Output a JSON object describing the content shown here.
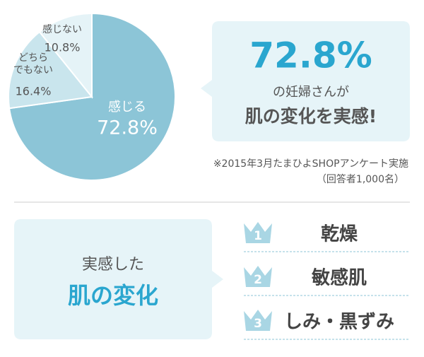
{
  "chart_data": {
    "type": "pie",
    "categories": [
      "感じる",
      "どちら\nでもない",
      "感じない"
    ],
    "values": [
      72.8,
      16.4,
      10.8
    ],
    "value_labels": [
      "72.8%",
      "16.4%",
      "10.8%"
    ],
    "colors": [
      "#8cc5d7",
      "#c9e5ed",
      "#e5f3f7"
    ]
  },
  "callout": {
    "value": "72.8%",
    "line1": "の妊婦さんが",
    "line2": "肌の変化を実感!"
  },
  "note": {
    "line1": "※2015年3月たまひよSHOPアンケート実施",
    "line2": "（回答者1,000名）"
  },
  "ranking": {
    "heading1": "実感した",
    "heading2": "肌の変化",
    "items": [
      {
        "rank": "1",
        "label": "乾燥"
      },
      {
        "rank": "2",
        "label": "敏感肌"
      },
      {
        "rank": "3",
        "label": "しみ・黒ずみ"
      }
    ]
  }
}
